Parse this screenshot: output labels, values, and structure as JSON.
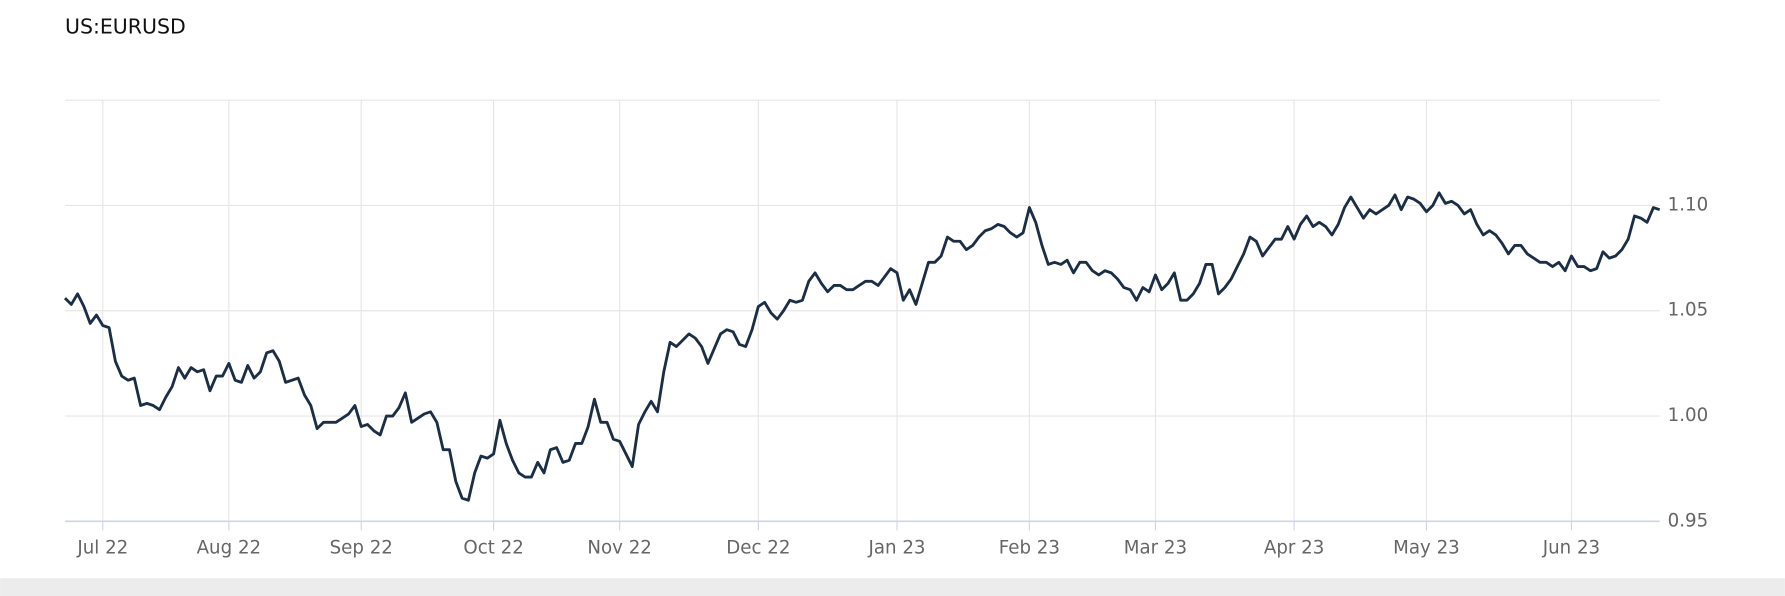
{
  "chart_data": {
    "type": "line",
    "title": "US:EURUSD",
    "categories": [
      null,
      null,
      null,
      null,
      null,
      null,
      "Jul 22",
      null,
      null,
      null,
      null,
      null,
      null,
      null,
      null,
      null,
      null,
      null,
      null,
      null,
      null,
      null,
      null,
      null,
      null,
      null,
      "Aug 22",
      null,
      null,
      null,
      null,
      null,
      null,
      null,
      null,
      null,
      null,
      null,
      null,
      null,
      null,
      null,
      null,
      null,
      null,
      null,
      null,
      "Sep 22",
      null,
      null,
      null,
      null,
      null,
      null,
      null,
      null,
      null,
      null,
      null,
      null,
      null,
      null,
      null,
      null,
      null,
      null,
      null,
      null,
      "Oct 22",
      null,
      null,
      null,
      null,
      null,
      null,
      null,
      null,
      null,
      null,
      null,
      null,
      null,
      null,
      null,
      null,
      null,
      null,
      null,
      "Nov 22",
      null,
      null,
      null,
      null,
      null,
      null,
      null,
      null,
      null,
      null,
      null,
      null,
      null,
      null,
      null,
      null,
      null,
      null,
      null,
      null,
      null,
      "Dec 22",
      null,
      null,
      null,
      null,
      null,
      null,
      null,
      null,
      null,
      null,
      null,
      null,
      null,
      null,
      null,
      null,
      null,
      null,
      null,
      null,
      null,
      "Jan 23",
      null,
      null,
      null,
      null,
      null,
      null,
      null,
      null,
      null,
      null,
      null,
      null,
      null,
      null,
      null,
      null,
      null,
      null,
      null,
      null,
      "Feb 23",
      null,
      null,
      null,
      null,
      null,
      null,
      null,
      null,
      null,
      null,
      null,
      null,
      null,
      null,
      null,
      null,
      null,
      null,
      null,
      "Mar 23",
      null,
      null,
      null,
      null,
      null,
      null,
      null,
      null,
      null,
      null,
      null,
      null,
      null,
      null,
      null,
      null,
      null,
      null,
      null,
      null,
      null,
      "Apr 23",
      null,
      null,
      null,
      null,
      null,
      null,
      null,
      null,
      null,
      null,
      null,
      null,
      null,
      null,
      null,
      null,
      null,
      null,
      null,
      null,
      "May 23",
      null,
      null,
      null,
      null,
      null,
      null,
      null,
      null,
      null,
      null,
      null,
      null,
      null,
      null,
      null,
      null,
      null,
      null,
      null,
      null,
      null,
      null,
      "Jun 23",
      null,
      null,
      null,
      null,
      null,
      null,
      null,
      null,
      null,
      null,
      null,
      null,
      null,
      null
    ],
    "values": [
      1.056,
      1.053,
      1.058,
      1.052,
      1.044,
      1.048,
      1.043,
      1.042,
      1.026,
      1.019,
      1.017,
      1.018,
      1.005,
      1.006,
      1.005,
      1.003,
      1.009,
      1.014,
      1.023,
      1.018,
      1.023,
      1.021,
      1.022,
      1.012,
      1.019,
      1.019,
      1.025,
      1.017,
      1.016,
      1.024,
      1.018,
      1.021,
      1.03,
      1.031,
      1.026,
      1.016,
      1.017,
      1.018,
      1.01,
      1.005,
      0.994,
      0.997,
      0.997,
      0.997,
      0.999,
      1.001,
      1.005,
      0.995,
      0.996,
      0.993,
      0.991,
      1.0,
      1.0,
      1.004,
      1.011,
      0.997,
      0.999,
      1.001,
      1.002,
      0.997,
      0.984,
      0.984,
      0.969,
      0.961,
      0.96,
      0.973,
      0.981,
      0.98,
      0.982,
      0.998,
      0.987,
      0.979,
      0.973,
      0.971,
      0.971,
      0.978,
      0.973,
      0.984,
      0.985,
      0.978,
      0.979,
      0.987,
      0.987,
      0.995,
      1.008,
      0.997,
      0.997,
      0.989,
      0.988,
      0.982,
      0.976,
      0.996,
      1.002,
      1.007,
      1.002,
      1.021,
      1.035,
      1.033,
      1.036,
      1.039,
      1.037,
      1.033,
      1.025,
      1.032,
      1.039,
      1.041,
      1.04,
      1.034,
      1.033,
      1.041,
      1.052,
      1.054,
      1.049,
      1.046,
      1.05,
      1.055,
      1.054,
      1.055,
      1.064,
      1.068,
      1.063,
      1.059,
      1.062,
      1.062,
      1.06,
      1.06,
      1.062,
      1.064,
      1.064,
      1.062,
      1.066,
      1.07,
      1.068,
      1.055,
      1.06,
      1.053,
      1.063,
      1.073,
      1.073,
      1.076,
      1.085,
      1.083,
      1.083,
      1.079,
      1.081,
      1.085,
      1.088,
      1.089,
      1.091,
      1.09,
      1.087,
      1.085,
      1.087,
      1.099,
      1.092,
      1.081,
      1.072,
      1.073,
      1.072,
      1.074,
      1.068,
      1.073,
      1.073,
      1.069,
      1.067,
      1.069,
      1.068,
      1.065,
      1.061,
      1.06,
      1.055,
      1.061,
      1.059,
      1.067,
      1.06,
      1.063,
      1.068,
      1.055,
      1.055,
      1.058,
      1.063,
      1.072,
      1.072,
      1.058,
      1.061,
      1.065,
      1.071,
      1.077,
      1.085,
      1.083,
      1.076,
      1.08,
      1.084,
      1.084,
      1.09,
      1.084,
      1.091,
      1.095,
      1.09,
      1.092,
      1.09,
      1.086,
      1.091,
      1.099,
      1.104,
      1.099,
      1.094,
      1.098,
      1.096,
      1.098,
      1.1,
      1.105,
      1.098,
      1.104,
      1.103,
      1.101,
      1.097,
      1.1,
      1.106,
      1.101,
      1.102,
      1.1,
      1.096,
      1.098,
      1.091,
      1.086,
      1.088,
      1.086,
      1.082,
      1.077,
      1.081,
      1.081,
      1.077,
      1.075,
      1.073,
      1.073,
      1.071,
      1.073,
      1.069,
      1.076,
      1.071,
      1.071,
      1.069,
      1.07,
      1.078,
      1.075,
      1.076,
      1.079,
      1.084,
      1.095,
      1.094,
      1.092,
      1.099,
      1.098
    ],
    "color": "#1b2e45",
    "ylim": [
      0.95,
      1.15
    ],
    "yticks": [
      0.95,
      {
        "value": 1,
        "label": "1.00"
      },
      1.05,
      {
        "value": 1.1,
        "label": "1.10"
      }
    ],
    "grid": true
  }
}
